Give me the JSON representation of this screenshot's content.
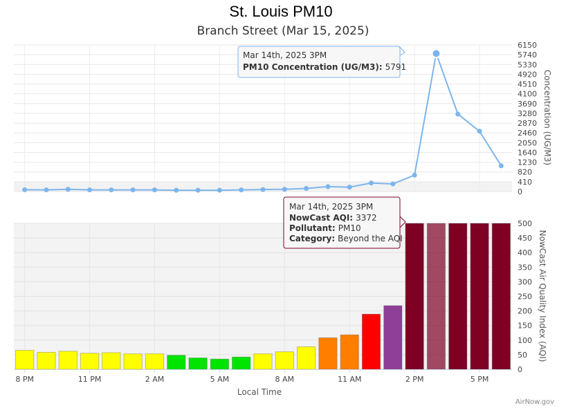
{
  "title": "St. Louis PM10",
  "subtitle": "Branch Street (Mar 15, 2025)",
  "credit": "AirNow.gov",
  "colors": {
    "line": "#7cb5ec",
    "good": "#00e400",
    "moderate": "#ffff00",
    "usg": "#ff7e00",
    "unhealthy": "#ff0000",
    "very_unhealthy": "#8f3f97",
    "hazardous": "#7e0023"
  },
  "chart_data": [
    {
      "type": "line",
      "name": "PM10 Concentration",
      "x": [
        "8 PM",
        "9 PM",
        "10 PM",
        "11 PM",
        "12 AM",
        "1 AM",
        "2 AM",
        "3 AM",
        "4 AM",
        "5 AM",
        "6 AM",
        "7 AM",
        "8 AM",
        "9 AM",
        "10 AM",
        "11 AM",
        "12 PM",
        "1 PM",
        "2 PM",
        "3 PM",
        "4 PM",
        "5 PM",
        "6 PM"
      ],
      "values": [
        75,
        70,
        95,
        70,
        70,
        70,
        70,
        55,
        55,
        55,
        70,
        85,
        95,
        130,
        205,
        185,
        360,
        320,
        690,
        5791,
        3250,
        2530,
        1080
      ],
      "ylabel": "Concentration (UG/M3)",
      "ylim": [
        0,
        6150
      ],
      "yticks": [
        "0",
        "410",
        "820",
        "1230",
        "1640",
        "2050",
        "2460",
        "2870",
        "3280",
        "3690",
        "4100",
        "4510",
        "4920",
        "5330",
        "5740",
        "6150"
      ],
      "highlight_band": [
        0,
        410
      ],
      "grid": true
    },
    {
      "type": "bar",
      "name": "NowCast Air Quality Index (AQI)",
      "x": [
        "8 PM",
        "9 PM",
        "10 PM",
        "11 PM",
        "12 AM",
        "1 AM",
        "2 AM",
        "3 AM",
        "4 AM",
        "5 AM",
        "6 AM",
        "7 AM",
        "8 AM",
        "9 AM",
        "10 AM",
        "11 AM",
        "12 PM",
        "1 PM",
        "2 PM",
        "3 PM",
        "4 PM",
        "5 PM",
        "6 PM"
      ],
      "values": [
        65,
        58,
        62,
        55,
        57,
        53,
        53,
        48,
        39,
        35,
        42,
        53,
        60,
        77,
        108,
        118,
        189,
        218,
        500,
        500,
        500,
        500,
        500
      ],
      "categories_color": [
        "moderate",
        "moderate",
        "moderate",
        "moderate",
        "moderate",
        "moderate",
        "moderate",
        "good",
        "good",
        "good",
        "good",
        "moderate",
        "moderate",
        "moderate",
        "usg",
        "usg",
        "unhealthy",
        "very_unhealthy",
        "hazardous",
        "hazardous",
        "hazardous",
        "hazardous",
        "hazardous"
      ],
      "hovered_index": 19,
      "ylabel": "NowCast Air Quality Index (AQI)",
      "ylim": [
        0,
        500
      ],
      "yticks": [
        "0",
        "50",
        "100",
        "150",
        "200",
        "250",
        "300",
        "350",
        "400",
        "450",
        "500"
      ],
      "xticks": [
        {
          "label": "8 PM",
          "index": 0
        },
        {
          "label": "11 PM",
          "index": 3
        },
        {
          "label": "2 AM",
          "index": 6
        },
        {
          "label": "5 AM",
          "index": 9
        },
        {
          "label": "8 AM",
          "index": 12
        },
        {
          "label": "11 AM",
          "index": 15
        },
        {
          "label": "2 PM",
          "index": 18
        },
        {
          "label": "5 PM",
          "index": 21
        }
      ],
      "xlabel": "Local Time",
      "grid": true
    }
  ],
  "tooltip_conc": {
    "time": "Mar 14th, 2025 3PM",
    "label": "PM10 Concentration (UG/M3):",
    "value": "5791"
  },
  "tooltip_aqi": {
    "time": "Mar 14th, 2025 3PM",
    "aqi_label": "NowCast AQI:",
    "aqi_value": "3372",
    "pollutant_label": "Pollutant:",
    "pollutant_value": "PM10",
    "category_label": "Category:",
    "category_value": "Beyond the AQI"
  }
}
